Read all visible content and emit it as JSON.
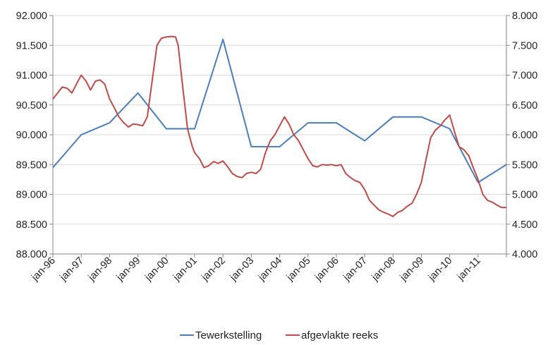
{
  "chart_data": {
    "type": "line",
    "title": "",
    "xlabel": "",
    "ylabel": "",
    "x_tick_labels": [
      "jan-96",
      "jan-97",
      "jan-98",
      "jan-99",
      "jan-00",
      "jan-01",
      "jan-02",
      "jan-03",
      "jan-04",
      "jan-05",
      "jan-06",
      "jan-07",
      "jan-08",
      "jan-09",
      "jan-10",
      "jan-11"
    ],
    "y_left": {
      "min": 88000,
      "max": 92000,
      "tick_values": [
        88000,
        88500,
        89000,
        89500,
        90000,
        90500,
        91000,
        91500,
        92000
      ],
      "tick_labels": [
        "88.000",
        "88.500",
        "89.000",
        "89.500",
        "90.000",
        "90.500",
        "91.000",
        "91.500",
        "92.000"
      ]
    },
    "y_right": {
      "min": 4000,
      "max": 8000,
      "tick_values": [
        4000,
        4500,
        5000,
        5500,
        6000,
        6500,
        7000,
        7500,
        8000
      ],
      "tick_labels": [
        "4.000",
        "4.500",
        "5.000",
        "5.500",
        "6.000",
        "6.500",
        "7.000",
        "7.500",
        "8.000"
      ]
    },
    "x_domain": [
      1996.0,
      2012.0
    ],
    "grid": "horizontal",
    "legend_position": "bottom",
    "series": [
      {
        "name": "Tewerkstelling",
        "axis": "left",
        "color": "#4a7ebb",
        "points": [
          [
            1996.0,
            89450
          ],
          [
            1997.0,
            90000
          ],
          [
            1998.0,
            90200
          ],
          [
            1999.0,
            90700
          ],
          [
            2000.0,
            90100
          ],
          [
            2001.0,
            90100
          ],
          [
            2002.0,
            91600
          ],
          [
            2003.0,
            89800
          ],
          [
            2004.0,
            89800
          ],
          [
            2005.0,
            90200
          ],
          [
            2006.0,
            90200
          ],
          [
            2007.0,
            89900
          ],
          [
            2008.0,
            90300
          ],
          [
            2009.0,
            90300
          ],
          [
            2010.0,
            90100
          ],
          [
            2011.0,
            89200
          ],
          [
            2012.0,
            89500
          ]
        ]
      },
      {
        "name": "afgevlakte reeks",
        "axis": "right",
        "color": "#be4b48",
        "points": [
          [
            1996.0,
            6600
          ],
          [
            1996.17,
            6700
          ],
          [
            1996.33,
            6800
          ],
          [
            1996.5,
            6780
          ],
          [
            1996.67,
            6700
          ],
          [
            1996.83,
            6850
          ],
          [
            1997.0,
            7000
          ],
          [
            1997.17,
            6900
          ],
          [
            1997.33,
            6750
          ],
          [
            1997.5,
            6900
          ],
          [
            1997.67,
            6920
          ],
          [
            1997.83,
            6850
          ],
          [
            1998.0,
            6600
          ],
          [
            1998.17,
            6450
          ],
          [
            1998.33,
            6300
          ],
          [
            1998.5,
            6200
          ],
          [
            1998.67,
            6130
          ],
          [
            1998.83,
            6180
          ],
          [
            1999.0,
            6170
          ],
          [
            1999.17,
            6150
          ],
          [
            1999.33,
            6300
          ],
          [
            1999.5,
            6900
          ],
          [
            1999.67,
            7500
          ],
          [
            1999.83,
            7620
          ],
          [
            2000.0,
            7640
          ],
          [
            2000.17,
            7650
          ],
          [
            2000.33,
            7640
          ],
          [
            2000.42,
            7500
          ],
          [
            2000.58,
            6800
          ],
          [
            2000.75,
            6100
          ],
          [
            2000.92,
            5800
          ],
          [
            2001.0,
            5700
          ],
          [
            2001.17,
            5600
          ],
          [
            2001.33,
            5450
          ],
          [
            2001.5,
            5480
          ],
          [
            2001.67,
            5550
          ],
          [
            2001.83,
            5520
          ],
          [
            2002.0,
            5560
          ],
          [
            2002.17,
            5460
          ],
          [
            2002.33,
            5350
          ],
          [
            2002.5,
            5300
          ],
          [
            2002.67,
            5280
          ],
          [
            2002.83,
            5350
          ],
          [
            2003.0,
            5370
          ],
          [
            2003.17,
            5350
          ],
          [
            2003.33,
            5420
          ],
          [
            2003.5,
            5700
          ],
          [
            2003.67,
            5900
          ],
          [
            2003.83,
            6000
          ],
          [
            2004.0,
            6150
          ],
          [
            2004.17,
            6300
          ],
          [
            2004.33,
            6180
          ],
          [
            2004.5,
            6000
          ],
          [
            2004.67,
            5900
          ],
          [
            2004.83,
            5750
          ],
          [
            2005.0,
            5600
          ],
          [
            2005.17,
            5480
          ],
          [
            2005.33,
            5460
          ],
          [
            2005.5,
            5500
          ],
          [
            2005.67,
            5490
          ],
          [
            2005.83,
            5500
          ],
          [
            2006.0,
            5480
          ],
          [
            2006.17,
            5500
          ],
          [
            2006.33,
            5350
          ],
          [
            2006.5,
            5280
          ],
          [
            2006.67,
            5230
          ],
          [
            2006.83,
            5200
          ],
          [
            2007.0,
            5080
          ],
          [
            2007.17,
            4900
          ],
          [
            2007.33,
            4820
          ],
          [
            2007.5,
            4740
          ],
          [
            2007.67,
            4700
          ],
          [
            2007.83,
            4670
          ],
          [
            2008.0,
            4630
          ],
          [
            2008.17,
            4700
          ],
          [
            2008.33,
            4730
          ],
          [
            2008.5,
            4800
          ],
          [
            2008.67,
            4850
          ],
          [
            2008.83,
            5000
          ],
          [
            2009.0,
            5200
          ],
          [
            2009.17,
            5600
          ],
          [
            2009.33,
            5950
          ],
          [
            2009.5,
            6080
          ],
          [
            2009.67,
            6150
          ],
          [
            2009.83,
            6250
          ],
          [
            2010.0,
            6330
          ],
          [
            2010.17,
            6050
          ],
          [
            2010.33,
            5800
          ],
          [
            2010.5,
            5750
          ],
          [
            2010.67,
            5650
          ],
          [
            2010.83,
            5450
          ],
          [
            2011.0,
            5250
          ],
          [
            2011.17,
            5000
          ],
          [
            2011.33,
            4900
          ],
          [
            2011.5,
            4870
          ],
          [
            2011.67,
            4820
          ],
          [
            2011.83,
            4780
          ],
          [
            2012.0,
            4780
          ]
        ]
      }
    ]
  }
}
